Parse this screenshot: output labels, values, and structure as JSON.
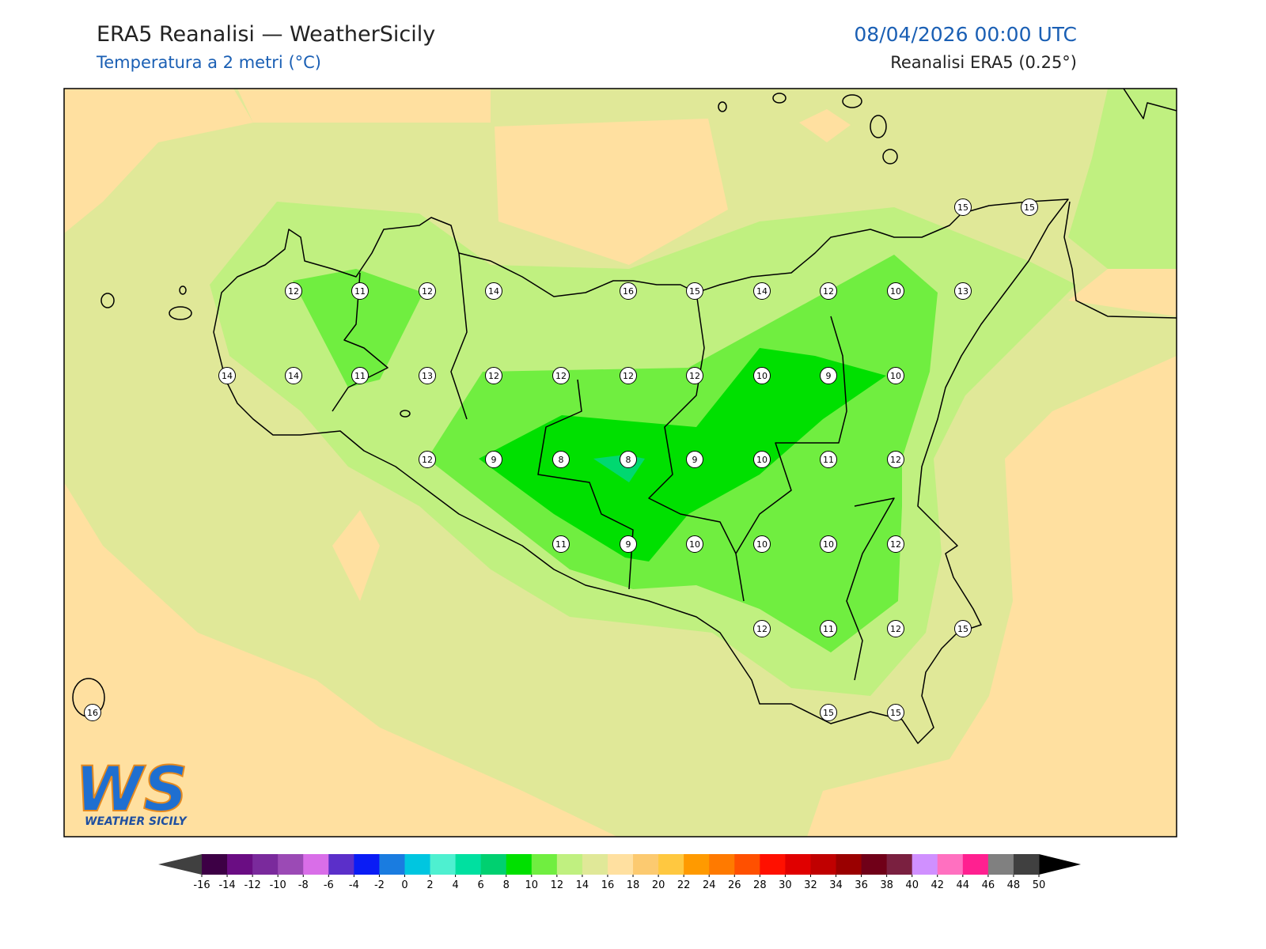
{
  "header": {
    "title": "ERA5 Reanalisi — WeatherSicily",
    "subtitle": "Temperatura a 2 metri (°C)",
    "datetime": "08/04/2026 00:00 UTC",
    "source": "Reanalisi ERA5 (0.25°)"
  },
  "map": {
    "labels": [
      15,
      15,
      12,
      11,
      12,
      14,
      16,
      15,
      14,
      12,
      10,
      13,
      14,
      14,
      11,
      13,
      12,
      12,
      12,
      12,
      10,
      9,
      10,
      12,
      9,
      8,
      8,
      9,
      10,
      11,
      12,
      11,
      9,
      10,
      10,
      10,
      12,
      12,
      11,
      12,
      15,
      16,
      15,
      15
    ]
  },
  "colorbar": {
    "ticks": [
      -16,
      -14,
      -12,
      -10,
      -8,
      -6,
      -4,
      -2,
      0,
      2,
      4,
      6,
      8,
      10,
      12,
      14,
      16,
      18,
      20,
      22,
      24,
      26,
      28,
      30,
      32,
      34,
      36,
      38,
      40,
      42,
      44,
      46,
      48,
      50
    ],
    "colors": [
      "#3d0045",
      "#6a0d83",
      "#7a2a9c",
      "#9b4ab5",
      "#d96ee8",
      "#5b2fc9",
      "#0a1cf5",
      "#1a7ce0",
      "#00c6e0",
      "#4ef0d0",
      "#00e0a0",
      "#00d070",
      "#00e000",
      "#70ee40",
      "#c0f080",
      "#e0e898",
      "#ffe0a0",
      "#fcca70",
      "#ffc840",
      "#ff9a00",
      "#ff7a00",
      "#ff5000",
      "#ff1000",
      "#e00000",
      "#c00000",
      "#9a0000",
      "#700018",
      "#7a2040",
      "#d090ff",
      "#ff70c0",
      "#ff2090",
      "#808080",
      "#404040"
    ],
    "under_color": "#404040",
    "over_color": "#000000"
  },
  "logo": {
    "mark": "WS",
    "text": "WEATHER SICILY"
  }
}
